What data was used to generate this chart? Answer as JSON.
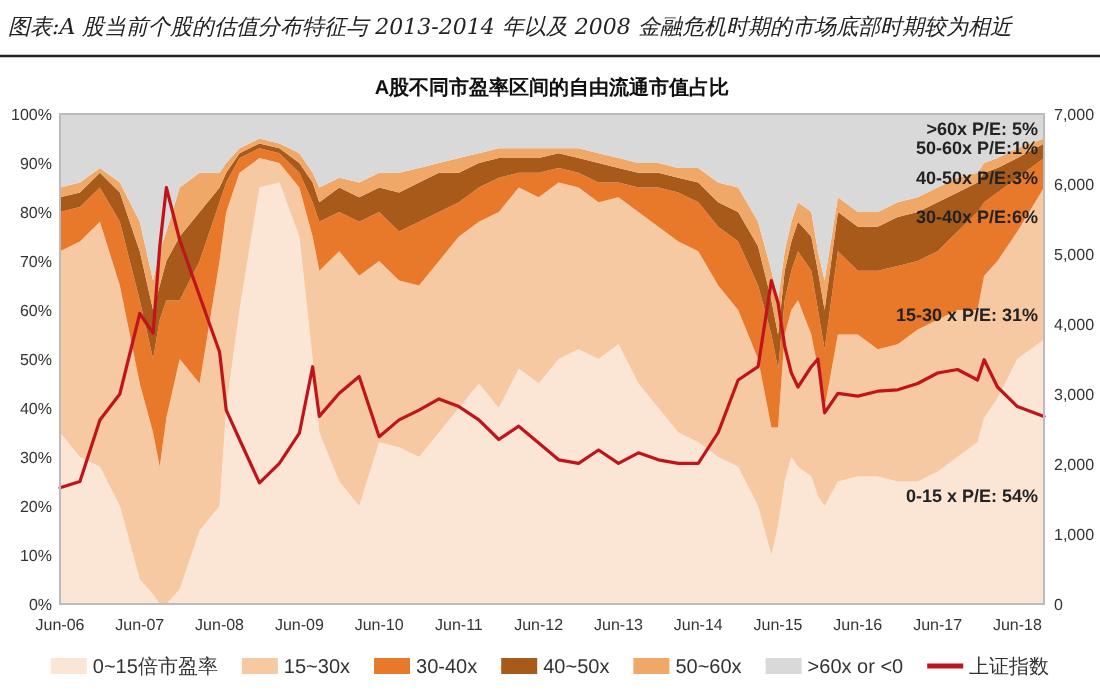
{
  "chart_data": {
    "type": "area",
    "stacked": true,
    "title": "图表:A 股当前个股的估值分布特征与 2013-2014 年以及 2008 金融危机时期的市场底部时期较为相近",
    "subtitle": "A股不同市盈率区间的自由流通市值占比",
    "x": [
      "2006-06",
      "2006-09",
      "2006-12",
      "2007-03",
      "2007-06",
      "2007-08",
      "2007-09",
      "2007-10",
      "2007-12",
      "2008-03",
      "2008-06",
      "2008-07",
      "2008-09",
      "2008-12",
      "2009-03",
      "2009-06",
      "2009-08",
      "2009-09",
      "2009-12",
      "2010-03",
      "2010-06",
      "2010-09",
      "2010-12",
      "2011-03",
      "2011-06",
      "2011-09",
      "2011-12",
      "2012-03",
      "2012-06",
      "2012-09",
      "2012-12",
      "2013-03",
      "2013-06",
      "2013-09",
      "2013-12",
      "2014-03",
      "2014-06",
      "2014-09",
      "2014-12",
      "2015-03",
      "2015-05",
      "2015-06",
      "2015-07",
      "2015-08",
      "2015-09",
      "2015-11",
      "2015-12",
      "2016-01",
      "2016-03",
      "2016-06",
      "2016-09",
      "2016-12",
      "2017-03",
      "2017-06",
      "2017-09",
      "2017-12",
      "2018-01",
      "2018-03",
      "2018-06",
      "2018-10"
    ],
    "xlim": [
      "2006-06",
      "2018-10"
    ],
    "xticks": [
      {
        "value": "2006-06",
        "label": "Jun-06"
      },
      {
        "value": "2007-06",
        "label": "Jun-07"
      },
      {
        "value": "2008-06",
        "label": "Jun-08"
      },
      {
        "value": "2009-06",
        "label": "Jun-09"
      },
      {
        "value": "2010-06",
        "label": "Jun-10"
      },
      {
        "value": "2011-06",
        "label": "Jun-11"
      },
      {
        "value": "2012-06",
        "label": "Jun-12"
      },
      {
        "value": "2013-06",
        "label": "Jun-13"
      },
      {
        "value": "2014-06",
        "label": "Jun-14"
      },
      {
        "value": "2015-06",
        "label": "Jun-15"
      },
      {
        "value": "2016-06",
        "label": "Jun-16"
      },
      {
        "value": "2017-06",
        "label": "Jun-17"
      },
      {
        "value": "2018-06",
        "label": "Jun-18"
      }
    ],
    "ylim": [
      0,
      100
    ],
    "yticks": [
      {
        "value": 0,
        "label": "0%"
      },
      {
        "value": 10,
        "label": "10%"
      },
      {
        "value": 20,
        "label": "20%"
      },
      {
        "value": 30,
        "label": "30%"
      },
      {
        "value": 40,
        "label": "40%"
      },
      {
        "value": 50,
        "label": "50%"
      },
      {
        "value": 60,
        "label": "60%"
      },
      {
        "value": 70,
        "label": "70%"
      },
      {
        "value": 80,
        "label": "80%"
      },
      {
        "value": 90,
        "label": "90%"
      },
      {
        "value": 100,
        "label": "100%"
      }
    ],
    "y2lim": [
      0,
      7000
    ],
    "y2ticks": [
      {
        "value": 0,
        "label": "0"
      },
      {
        "value": 1000,
        "label": "1,000"
      },
      {
        "value": 2000,
        "label": "2,000"
      },
      {
        "value": 3000,
        "label": "3,000"
      },
      {
        "value": 4000,
        "label": "4,000"
      },
      {
        "value": 5000,
        "label": "5,000"
      },
      {
        "value": 6000,
        "label": "6,000"
      },
      {
        "value": 7000,
        "label": "7,000"
      }
    ],
    "legend": "bottom",
    "series": [
      {
        "name": "0~15倍市盈率",
        "type": "area",
        "color": "#fbe6d6",
        "values": [
          35,
          30,
          28,
          20,
          5,
          2,
          0,
          0,
          3,
          15,
          20,
          40,
          60,
          85,
          86,
          75,
          50,
          35,
          25,
          20,
          33,
          32,
          30,
          35,
          40,
          45,
          40,
          48,
          45,
          50,
          52,
          50,
          53,
          45,
          40,
          35,
          33,
          30,
          28,
          20,
          10,
          16,
          25,
          30,
          28,
          26,
          22,
          20,
          25,
          26,
          26,
          25,
          25,
          27,
          30,
          33,
          38,
          42,
          50,
          54
        ]
      },
      {
        "name": "15~30x",
        "type": "area",
        "color": "#f6c9a2",
        "values": [
          37,
          44,
          50,
          45,
          40,
          33,
          28,
          38,
          47,
          30,
          50,
          40,
          28,
          6,
          4,
          10,
          25,
          33,
          47,
          47,
          37,
          34,
          35,
          35,
          35,
          33,
          40,
          37,
          38,
          36,
          33,
          32,
          30,
          35,
          37,
          39,
          39,
          35,
          32,
          30,
          26,
          20,
          30,
          30,
          34,
          29,
          26,
          20,
          30,
          29,
          26,
          28,
          31,
          31,
          30,
          27,
          29,
          28,
          26,
          31
        ]
      },
      {
        "name": "30-40x",
        "type": "area",
        "color": "#e8782a",
        "values": [
          8,
          7,
          7,
          13,
          17,
          15,
          30,
          24,
          12,
          25,
          12,
          6,
          3,
          2,
          2,
          3,
          7,
          10,
          8,
          11,
          10,
          10,
          13,
          10,
          7,
          7,
          7,
          3,
          5,
          3,
          3,
          4,
          3,
          5,
          8,
          10,
          10,
          12,
          14,
          15,
          19,
          12,
          7,
          8,
          10,
          13,
          12,
          12,
          17,
          13,
          16,
          16,
          14,
          14,
          16,
          20,
          15,
          14,
          11,
          6
        ]
      },
      {
        "name": "40~50x",
        "type": "area",
        "color": "#a85a1a",
        "values": [
          3,
          3,
          3,
          6,
          10,
          10,
          7,
          8,
          13,
          10,
          3,
          2,
          1,
          1,
          1,
          2,
          4,
          4,
          5,
          5,
          5,
          8,
          8,
          8,
          6,
          5,
          4,
          3,
          3,
          3,
          3,
          4,
          3,
          3,
          3,
          3,
          4,
          5,
          6,
          8,
          7,
          7,
          6,
          6,
          6,
          7,
          8,
          8,
          8,
          9,
          9,
          10,
          10,
          10,
          8,
          6,
          6,
          5,
          4,
          3
        ]
      },
      {
        "name": "50~60x",
        "type": "area",
        "color": "#f0a868",
        "values": [
          2,
          2,
          1,
          2,
          6,
          6,
          7,
          6,
          10,
          8,
          3,
          2,
          1,
          1,
          1,
          2,
          2,
          3,
          2,
          3,
          3,
          4,
          3,
          2,
          3,
          2,
          2,
          2,
          2,
          1,
          2,
          2,
          2,
          2,
          2,
          2,
          3,
          4,
          5,
          5,
          6,
          7,
          4,
          4,
          4,
          5,
          4,
          6,
          3,
          3,
          3,
          3,
          3,
          3,
          3,
          2,
          2,
          2,
          2,
          1
        ]
      },
      {
        "name": ">60x or <0",
        "type": "area",
        "color": "#d9d9d9",
        "values": [
          15,
          14,
          11,
          14,
          22,
          34,
          28,
          24,
          15,
          12,
          12,
          10,
          7,
          5,
          6,
          8,
          12,
          15,
          13,
          14,
          12,
          12,
          11,
          10,
          9,
          8,
          7,
          7,
          7,
          7,
          7,
          8,
          9,
          10,
          10,
          11,
          11,
          14,
          15,
          22,
          32,
          38,
          28,
          22,
          18,
          20,
          28,
          34,
          17,
          20,
          20,
          18,
          17,
          15,
          13,
          12,
          10,
          9,
          7,
          5
        ]
      },
      {
        "name": "上证指数",
        "type": "line",
        "axis": "y2",
        "color": "#c0141c",
        "values": [
          1660,
          1750,
          2630,
          3000,
          4150,
          3870,
          5100,
          5950,
          5200,
          4400,
          3600,
          2770,
          2350,
          1730,
          2010,
          2440,
          3390,
          2680,
          3010,
          3250,
          2390,
          2630,
          2770,
          2930,
          2820,
          2630,
          2350,
          2540,
          2300,
          2060,
          2010,
          2200,
          2010,
          2160,
          2060,
          2010,
          2010,
          2450,
          3200,
          3390,
          4620,
          4300,
          3680,
          3300,
          3100,
          3390,
          3500,
          2730,
          3010,
          2970,
          3040,
          3060,
          3150,
          3300,
          3350,
          3200,
          3490,
          3100,
          2820,
          2680
        ]
      }
    ],
    "annotations": [
      {
        "text": ">60x P/E: 5%",
        "x": "2018-10",
        "y": 97
      },
      {
        "text": "50-60x P/E:1%",
        "x": "2018-10",
        "y": 93
      },
      {
        "text": "40-50x P/E:3%",
        "x": "2018-10",
        "y": 87
      },
      {
        "text": "30-40x P/E:6%",
        "x": "2018-10",
        "y": 79
      },
      {
        "text": "15-30 x P/E: 31%",
        "x": "2018-10",
        "y": 59
      },
      {
        "text": "0-15 x P/E: 54%",
        "x": "2018-10",
        "y": 22
      }
    ]
  }
}
